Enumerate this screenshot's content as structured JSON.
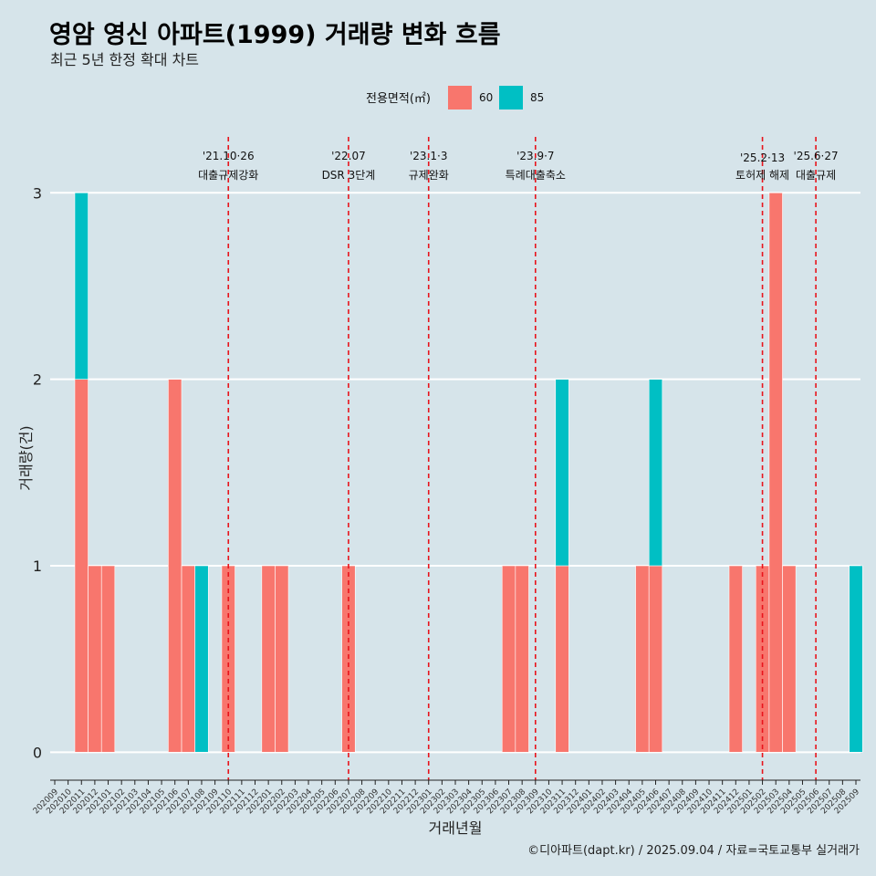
{
  "page": {
    "title": "영암 영신 아파트(1999) 거래량 변화 흐름",
    "subtitle": "최근 5년 한정 확대 차트",
    "caption": "©디아파트(dapt.kr) / 2025.09.04 / 자료=국토교통부 실거래가"
  },
  "colors": {
    "background": "#d6e4ea",
    "series_60": "#f8766d",
    "series_85": "#00bfc4",
    "grid": "#ffffff",
    "event_line": "#e8141c"
  },
  "chart_data": {
    "type": "bar",
    "xlabel": "거래년월",
    "ylabel": "거래량(건)",
    "ylim": [
      -0.15,
      3.3
    ],
    "yticks": [
      0,
      1,
      2,
      3
    ],
    "grid": "horizontal",
    "legend": {
      "title": "전용면적(㎡)",
      "position": "top",
      "entries": [
        "60",
        "85"
      ]
    },
    "categories": [
      "202009",
      "202010",
      "202011",
      "202012",
      "202101",
      "202102",
      "202103",
      "202104",
      "202105",
      "202106",
      "202107",
      "202108",
      "202109",
      "202110",
      "202111",
      "202112",
      "202201",
      "202202",
      "202203",
      "202204",
      "202205",
      "202206",
      "202207",
      "202208",
      "202209",
      "202210",
      "202211",
      "202212",
      "202301",
      "202302",
      "202303",
      "202304",
      "202305",
      "202306",
      "202307",
      "202308",
      "202309",
      "202310",
      "202311",
      "202312",
      "202401",
      "202402",
      "202403",
      "202404",
      "202405",
      "202406",
      "202407",
      "202408",
      "202409",
      "202410",
      "202411",
      "202412",
      "202501",
      "202502",
      "202503",
      "202504",
      "202505",
      "202506",
      "202507",
      "202508",
      "202509"
    ],
    "series": [
      {
        "name": "60",
        "color": "#f8766d",
        "points": [
          {
            "x": "202011",
            "y": 2
          },
          {
            "x": "202012",
            "y": 1
          },
          {
            "x": "202101",
            "y": 1
          },
          {
            "x": "202106",
            "y": 2
          },
          {
            "x": "202107",
            "y": 1
          },
          {
            "x": "202110",
            "y": 1
          },
          {
            "x": "202201",
            "y": 1
          },
          {
            "x": "202202",
            "y": 1
          },
          {
            "x": "202207",
            "y": 1
          },
          {
            "x": "202307",
            "y": 1
          },
          {
            "x": "202308",
            "y": 1
          },
          {
            "x": "202311",
            "y": 1
          },
          {
            "x": "202405",
            "y": 1
          },
          {
            "x": "202406",
            "y": 1
          },
          {
            "x": "202412",
            "y": 1
          },
          {
            "x": "202502",
            "y": 1
          },
          {
            "x": "202503",
            "y": 3
          },
          {
            "x": "202504",
            "y": 1
          }
        ]
      },
      {
        "name": "85",
        "color": "#00bfc4",
        "points": [
          {
            "x": "202011",
            "y": 1
          },
          {
            "x": "202108",
            "y": 1
          },
          {
            "x": "202311",
            "y": 1
          },
          {
            "x": "202406",
            "y": 1
          },
          {
            "x": "202509",
            "y": 1
          }
        ]
      }
    ],
    "annotations": [
      {
        "date": "'21.10·26",
        "label": "대출규제강화",
        "x": "202110"
      },
      {
        "date": "'22.07",
        "label": "DSR 3단계",
        "x": "202207"
      },
      {
        "date": "'23.1·3",
        "label": "규제완화",
        "x": "202301"
      },
      {
        "date": "'23.9·7",
        "label": "특례대출축소",
        "x": "202309"
      },
      {
        "date": "'25.2·13",
        "label": "토허제 해제",
        "x": "202502"
      },
      {
        "date": "'25.6·27",
        "label": "대출규제",
        "x": "202506"
      }
    ]
  }
}
